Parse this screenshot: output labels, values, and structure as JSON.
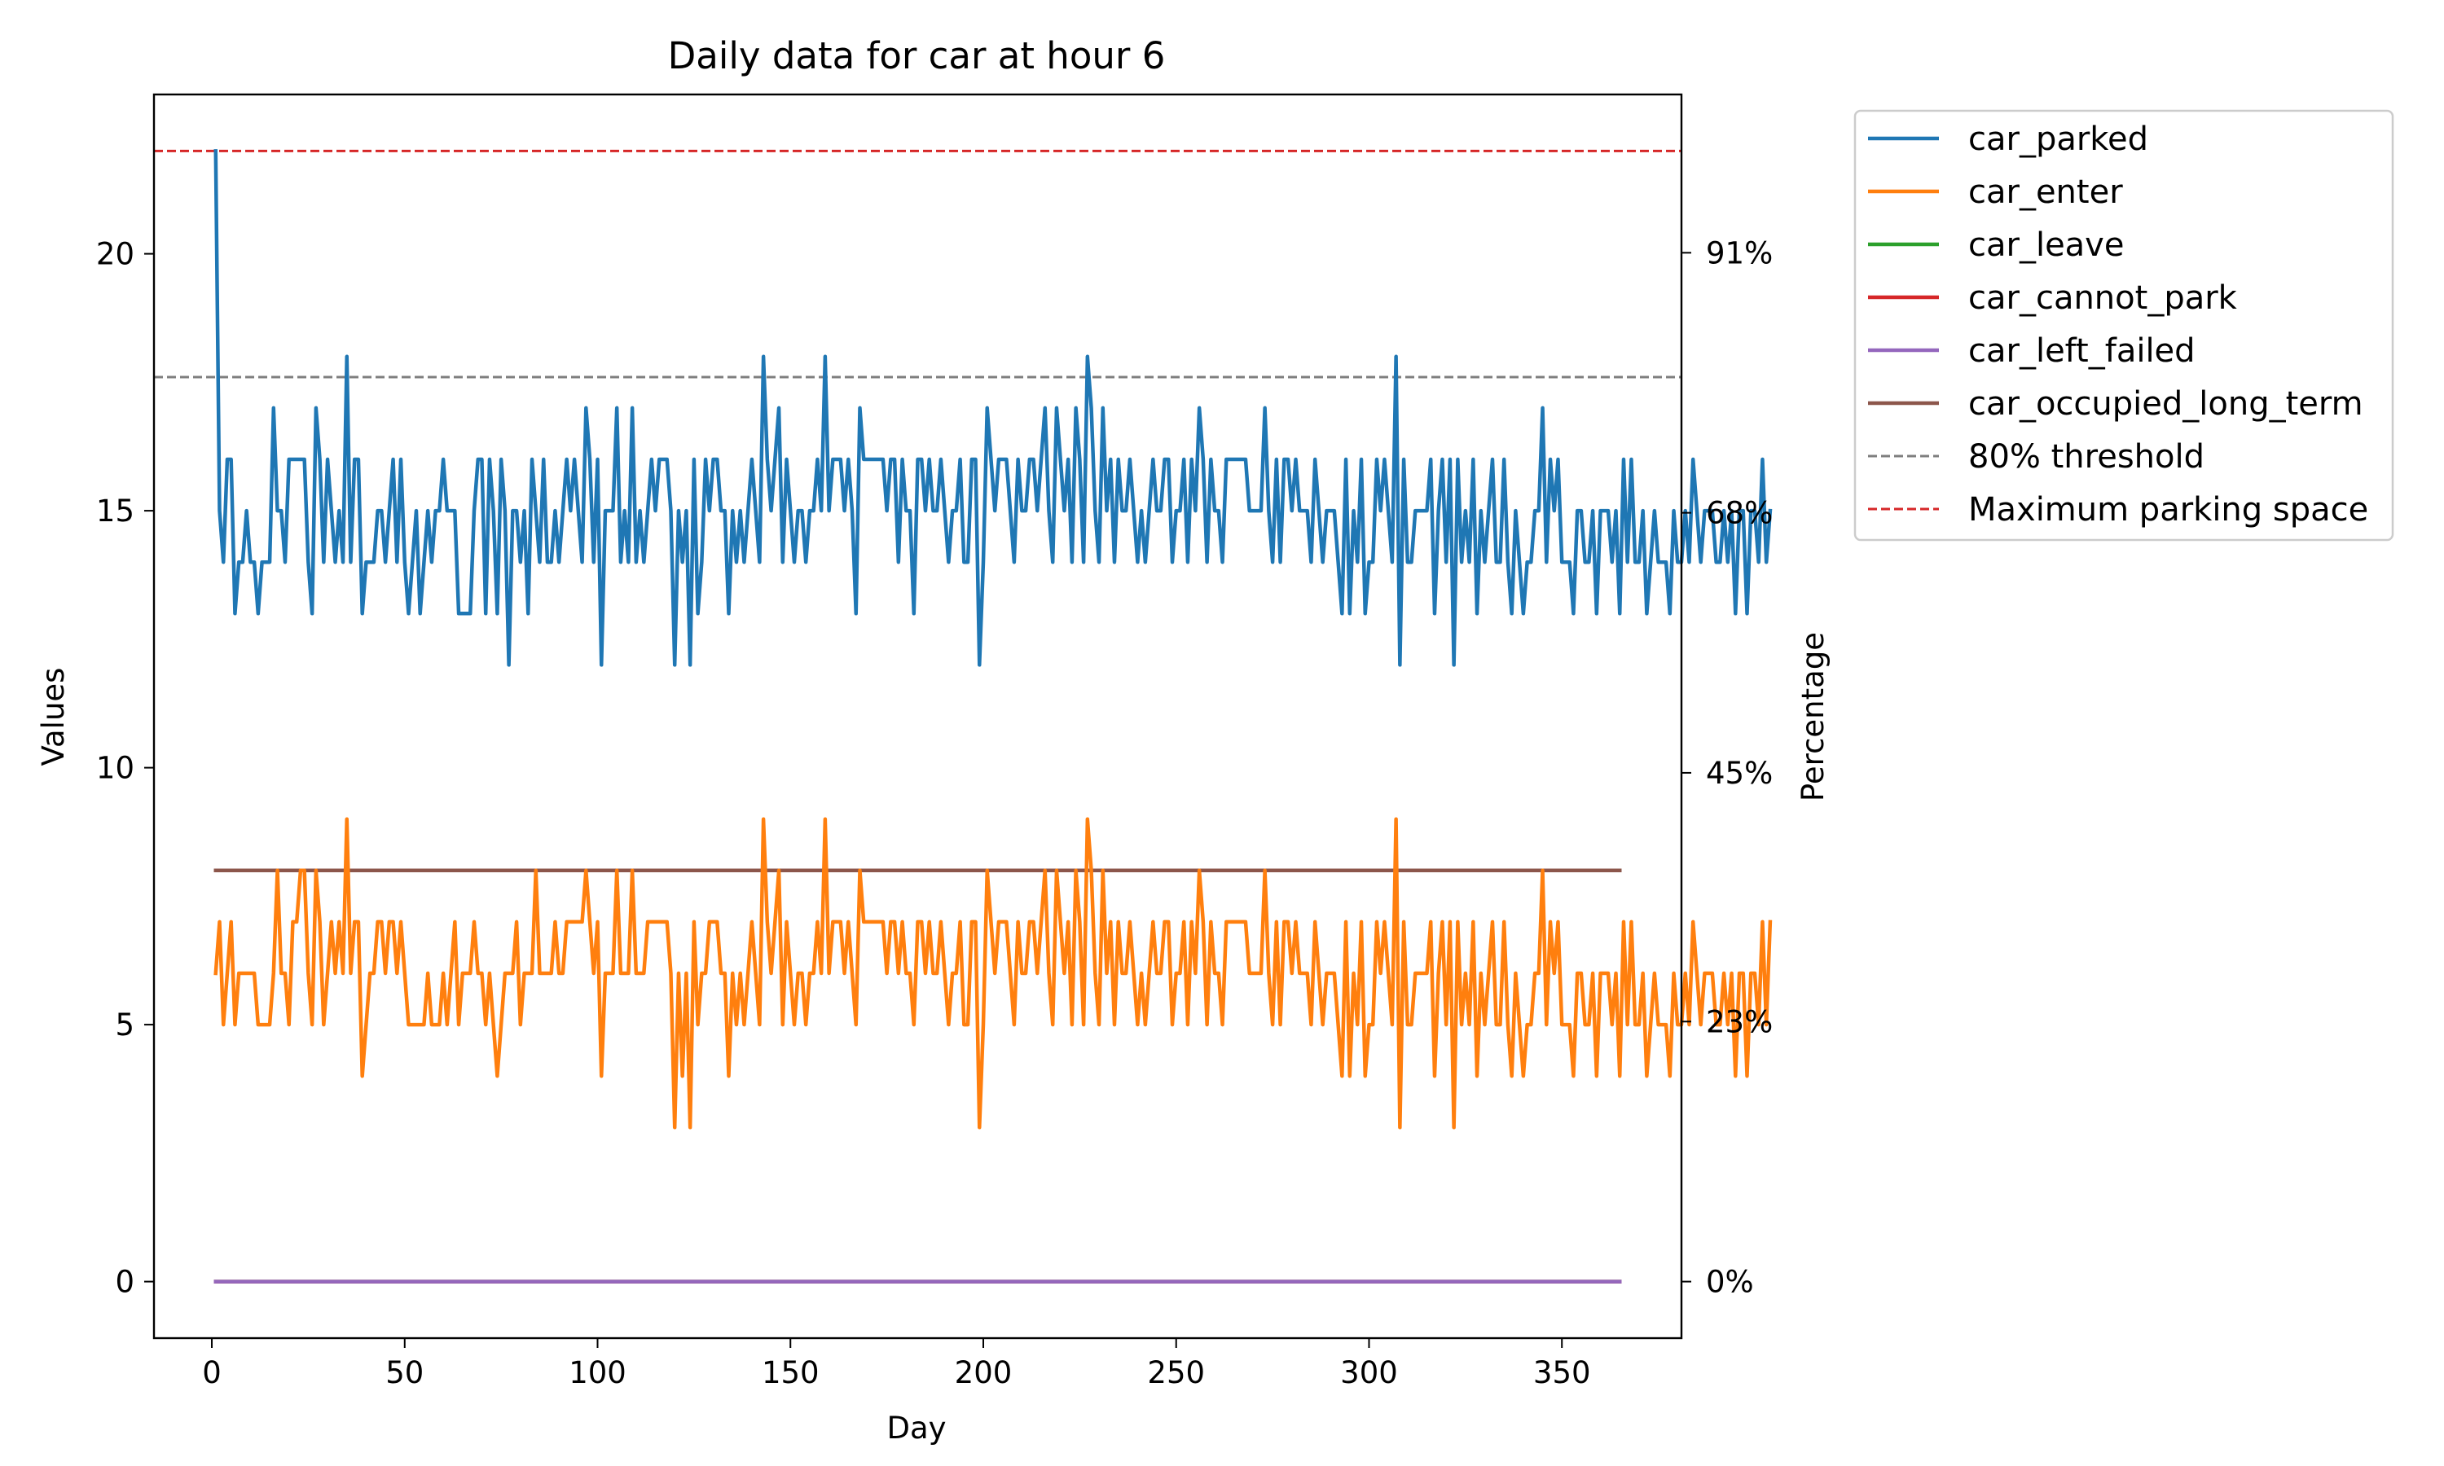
{
  "chart_data": {
    "type": "line",
    "title": "Daily data for car at hour 6",
    "xlabel": "Day",
    "ylabel": "Values",
    "y2label": "Percentage",
    "xlim": [
      -15,
      381
    ],
    "ylim": [
      -1.1,
      23.1
    ],
    "xticks": [
      0,
      50,
      100,
      150,
      200,
      250,
      300,
      350
    ],
    "yticks": [
      0,
      5,
      10,
      15,
      20
    ],
    "y2ticks": [
      {
        "value": 0,
        "label": "0%"
      },
      {
        "value": 5.06,
        "label": "23%"
      },
      {
        "value": 9.9,
        "label": "45%"
      },
      {
        "value": 14.96,
        "label": "68%"
      },
      {
        "value": 20.02,
        "label": "91%"
      }
    ],
    "grid": false,
    "legend_position": "outside-right-top",
    "day_range": [
      1,
      365
    ],
    "series": [
      {
        "name": "car_parked",
        "color": "#1f77b4",
        "values": [
          22,
          15,
          14,
          16,
          16,
          13,
          14,
          14,
          15,
          14,
          14,
          13,
          14,
          14,
          14,
          17,
          15,
          15,
          14,
          16,
          16,
          16,
          16,
          16,
          14,
          13,
          17,
          16,
          14,
          16,
          15,
          14,
          15,
          14,
          18,
          14,
          16,
          16,
          13,
          14,
          14,
          14,
          15,
          15,
          14,
          15,
          16,
          14,
          16,
          14,
          13,
          14,
          15,
          13,
          14,
          15,
          14,
          15,
          15,
          16,
          15,
          15,
          15,
          13,
          13,
          13,
          13,
          15,
          16,
          16,
          13,
          16,
          15,
          13,
          16,
          15,
          12,
          15,
          15,
          14,
          15,
          13,
          16,
          15,
          14,
          16,
          14,
          14,
          15,
          14,
          15,
          16,
          15,
          16,
          15,
          14,
          17,
          16,
          14,
          16,
          12,
          15,
          15,
          15,
          17,
          14,
          15,
          14,
          17,
          14,
          15,
          14,
          15,
          16,
          15,
          16,
          16,
          16,
          15,
          12,
          15,
          14,
          15,
          12,
          16,
          13,
          14,
          16,
          15,
          16,
          16,
          15,
          15,
          13,
          15,
          14,
          15,
          14,
          15,
          16,
          15,
          14,
          18,
          16,
          15,
          16,
          17,
          14,
          16,
          15,
          14,
          15,
          15,
          14,
          15,
          15,
          16,
          15,
          18,
          15,
          16,
          16,
          16,
          15,
          16,
          15,
          13,
          17,
          16,
          16,
          16,
          16,
          16,
          16,
          15,
          16,
          16,
          14,
          16,
          15,
          15,
          13,
          16,
          16,
          15,
          16,
          15,
          15,
          16,
          15,
          14,
          15,
          15,
          16,
          14,
          14,
          16,
          16,
          12,
          14,
          17,
          16,
          15,
          16,
          16,
          16,
          15,
          14,
          16,
          15,
          15,
          16,
          16,
          15,
          16,
          17,
          15,
          14,
          17,
          16,
          15,
          16,
          14,
          17,
          16,
          14,
          18,
          17,
          15,
          14,
          17,
          15,
          16,
          14,
          16,
          15,
          15,
          16,
          15,
          14,
          15,
          14,
          15,
          16,
          15,
          15,
          16,
          16,
          14,
          15,
          15,
          16,
          14,
          16,
          15,
          17,
          16,
          14,
          16,
          15,
          15,
          14,
          16,
          16,
          16,
          16,
          16,
          16,
          15,
          15,
          15,
          15,
          17,
          15,
          14,
          16,
          14,
          16,
          16,
          15,
          16,
          15,
          15,
          15,
          14,
          16,
          15,
          14,
          15,
          15,
          15,
          14,
          13,
          16,
          13,
          15,
          14,
          16,
          13,
          14,
          14,
          16,
          15,
          16,
          15,
          14,
          18,
          12,
          16,
          14,
          14,
          15,
          15,
          15,
          15,
          16,
          13,
          15,
          16,
          14,
          16,
          12,
          16,
          14,
          15,
          14,
          16,
          13,
          15,
          14,
          15,
          16,
          14,
          14,
          16,
          14,
          13,
          15,
          14,
          13,
          14,
          14,
          15,
          15,
          17,
          14,
          16,
          15,
          16,
          14,
          14,
          14,
          13,
          15,
          15,
          14,
          14,
          15,
          13,
          15,
          15,
          15,
          14,
          15,
          13,
          16,
          14,
          16,
          14,
          14,
          15,
          13,
          14,
          15,
          14,
          14,
          14,
          13,
          15,
          14,
          14,
          15,
          14,
          16,
          15,
          14,
          15,
          15,
          15,
          14,
          14,
          15,
          14,
          15,
          13,
          15,
          15,
          13,
          15,
          15,
          14,
          16,
          14,
          15
        ]
      },
      {
        "name": "car_enter",
        "color": "#ff7f0e",
        "values": [
          6,
          7,
          5,
          6,
          7,
          5,
          6,
          6,
          6,
          6,
          6,
          5,
          5,
          5,
          5,
          6,
          8,
          6,
          6,
          5,
          7,
          7,
          8,
          8,
          6,
          5,
          8,
          7,
          5,
          6,
          7,
          6,
          7,
          6,
          9,
          6,
          7,
          7,
          4,
          5,
          6,
          6,
          7,
          7,
          6,
          7,
          7,
          6,
          7,
          6,
          5,
          5,
          5,
          5,
          5,
          6,
          5,
          5,
          5,
          6,
          5,
          6,
          7,
          5,
          6,
          6,
          6,
          7,
          6,
          6,
          5,
          6,
          5,
          4,
          5,
          6,
          6,
          6,
          7,
          5,
          6,
          6,
          6,
          8,
          6,
          6,
          6,
          6,
          7,
          6,
          6,
          7,
          7,
          7,
          7,
          7,
          8,
          7,
          6,
          7,
          4,
          6,
          6,
          6,
          8,
          6,
          6,
          6,
          8,
          6,
          6,
          6,
          7,
          7,
          7,
          7,
          7,
          7,
          6,
          3,
          6,
          4,
          6,
          3,
          7,
          5,
          6,
          6,
          7,
          7,
          7,
          6,
          6,
          4,
          6,
          5,
          6,
          5,
          6,
          7,
          6,
          5,
          9,
          7,
          6,
          7,
          8,
          5,
          7,
          6,
          5,
          6,
          6,
          5,
          6,
          6,
          7,
          6,
          9,
          6,
          7,
          7,
          7,
          6,
          7,
          6,
          5,
          8,
          7,
          7,
          7,
          7,
          7,
          7,
          6,
          7,
          7,
          6,
          7,
          6,
          6,
          5,
          7,
          7,
          6,
          7,
          6,
          6,
          7,
          6,
          5,
          6,
          6,
          7,
          5,
          5,
          7,
          7,
          3,
          5,
          8,
          7,
          6,
          7,
          7,
          7,
          6,
          5,
          7,
          6,
          6,
          7,
          7,
          6,
          7,
          8,
          6,
          5,
          8,
          7,
          6,
          7,
          5,
          8,
          7,
          5,
          9,
          8,
          6,
          5,
          8,
          6,
          7,
          5,
          7,
          6,
          6,
          7,
          6,
          5,
          6,
          5,
          6,
          7,
          6,
          6,
          7,
          7,
          5,
          6,
          6,
          7,
          5,
          7,
          6,
          8,
          7,
          5,
          7,
          6,
          6,
          5,
          7,
          7,
          7,
          7,
          7,
          7,
          6,
          6,
          6,
          6,
          8,
          6,
          5,
          7,
          5,
          7,
          7,
          6,
          7,
          6,
          6,
          6,
          5,
          7,
          6,
          5,
          6,
          6,
          6,
          5,
          4,
          7,
          4,
          6,
          5,
          7,
          4,
          5,
          5,
          7,
          6,
          7,
          6,
          5,
          9,
          3,
          7,
          5,
          5,
          6,
          6,
          6,
          6,
          7,
          4,
          6,
          7,
          5,
          7,
          3,
          7,
          5,
          6,
          5,
          7,
          4,
          6,
          5,
          6,
          7,
          5,
          5,
          7,
          5,
          4,
          6,
          5,
          4,
          5,
          5,
          6,
          6,
          8,
          5,
          7,
          6,
          7,
          5,
          5,
          5,
          4,
          6,
          6,
          5,
          5,
          6,
          4,
          6,
          6,
          6,
          5,
          6,
          4,
          7,
          5,
          7,
          5,
          5,
          6,
          4,
          5,
          6,
          5,
          5,
          5,
          4,
          6,
          5,
          5,
          6,
          5,
          7,
          6,
          5,
          6,
          6,
          6,
          5,
          5,
          6,
          5,
          6,
          4,
          6,
          6,
          4,
          6,
          6,
          5,
          7,
          5,
          7
        ]
      },
      {
        "name": "car_leave",
        "color": "#2ca02c",
        "constant": 0
      },
      {
        "name": "car_cannot_park",
        "color": "#d62728",
        "constant": 0
      },
      {
        "name": "car_left_failed",
        "color": "#9467bd",
        "constant": 0
      },
      {
        "name": "car_occupied_long_term",
        "color": "#8c564b",
        "constant": 8
      }
    ],
    "reference_lines": [
      {
        "name": "80% threshold",
        "value": 17.6,
        "color": "#7f7f7f",
        "style": "dashed"
      },
      {
        "name": "Maximum parking space",
        "value": 22,
        "color": "#d62728",
        "style": "dashed"
      }
    ]
  }
}
